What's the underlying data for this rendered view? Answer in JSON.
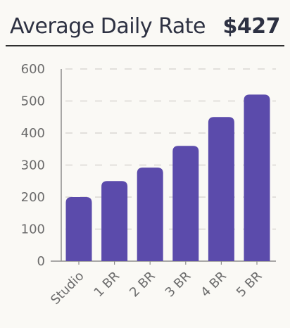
{
  "header": {
    "title": "Average Daily Rate",
    "kpi_value": "$427"
  },
  "colors": {
    "bar": "#5b4bab",
    "grid": "#d9d8d4",
    "axis": "#8c8c8c",
    "text": "#2d3142",
    "background": "#faf9f5"
  },
  "chart_data": {
    "type": "bar",
    "title": "",
    "xlabel": "",
    "ylabel": "",
    "categories": [
      "Studio",
      "1 BR",
      "2 BR",
      "3 BR",
      "4 BR",
      "5 BR"
    ],
    "values": [
      200,
      250,
      292,
      360,
      450,
      520
    ],
    "ylim": [
      0,
      600
    ],
    "yticks": [
      0,
      100,
      200,
      300,
      400,
      500,
      600
    ],
    "grid": true,
    "legend": "none"
  }
}
